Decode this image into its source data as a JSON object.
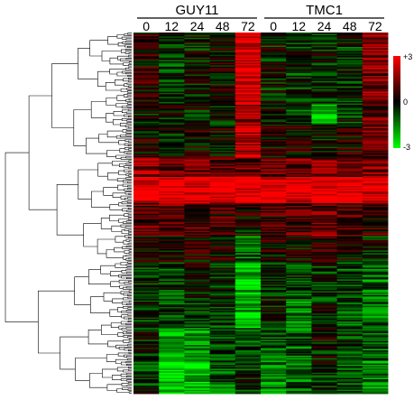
{
  "chart_data": {
    "type": "heatmap",
    "title": "",
    "groups": [
      {
        "name": "GUY11",
        "columns": [
          "0",
          "12",
          "24",
          "48",
          "72"
        ]
      },
      {
        "name": "TMC1",
        "columns": [
          "0",
          "12",
          "24",
          "48",
          "72"
        ]
      }
    ],
    "color_scale": {
      "min": -3,
      "mid": 0,
      "max": 3,
      "low_color": "#00ff00",
      "mid_color": "#000000",
      "high_color": "#ff0000",
      "tick_labels": [
        "+3",
        "0",
        "-3"
      ]
    },
    "row_blocks": [
      {
        "rows": 55,
        "column_means": [
          0.4,
          -0.6,
          -0.2,
          0.1,
          2.6,
          -0.2,
          -0.6,
          -0.4,
          -0.5,
          1.5
        ]
      },
      {
        "rows": 15,
        "column_means": [
          -0.2,
          -0.3,
          -0.2,
          -0.1,
          1.5,
          -0.3,
          -0.8,
          -1.8,
          -0.6,
          1.0
        ]
      },
      {
        "rows": 25,
        "column_means": [
          0.2,
          -0.1,
          0.3,
          0.2,
          2.2,
          0.2,
          0.4,
          -0.2,
          0.3,
          1.2
        ]
      },
      {
        "rows": 15,
        "column_means": [
          1.6,
          1.1,
          1.2,
          1.0,
          1.1,
          1.2,
          1.4,
          1.5,
          1.4,
          1.3
        ]
      },
      {
        "rows": 20,
        "column_means": [
          2.8,
          2.8,
          2.7,
          2.8,
          2.8,
          2.9,
          2.8,
          2.8,
          2.8,
          2.8
        ]
      },
      {
        "rows": 25,
        "column_means": [
          1.0,
          0.9,
          0.9,
          0.7,
          0.0,
          0.7,
          0.9,
          1.2,
          0.9,
          0.6
        ]
      },
      {
        "rows": 20,
        "column_means": [
          0.2,
          0.0,
          0.2,
          0.1,
          -1.2,
          0.2,
          0.0,
          0.4,
          0.3,
          -0.4
        ]
      },
      {
        "rows": 30,
        "column_means": [
          -0.4,
          -0.6,
          -0.1,
          -0.4,
          -2.2,
          -0.4,
          -0.8,
          -0.5,
          -0.8,
          -1.2
        ]
      },
      {
        "rows": 20,
        "column_means": [
          -0.6,
          -0.7,
          -0.5,
          -0.6,
          -2.0,
          -0.2,
          -1.5,
          -0.2,
          -1.0,
          -1.3
        ]
      },
      {
        "rows": 25,
        "column_means": [
          -0.4,
          -2.0,
          -1.8,
          -0.8,
          -0.8,
          -1.0,
          -1.0,
          -0.2,
          -0.6,
          -1.2
        ]
      },
      {
        "rows": 25,
        "column_means": [
          -0.6,
          -2.4,
          -2.2,
          -1.0,
          -0.6,
          -1.4,
          -1.2,
          -0.4,
          -0.9,
          -1.4
        ]
      }
    ]
  }
}
